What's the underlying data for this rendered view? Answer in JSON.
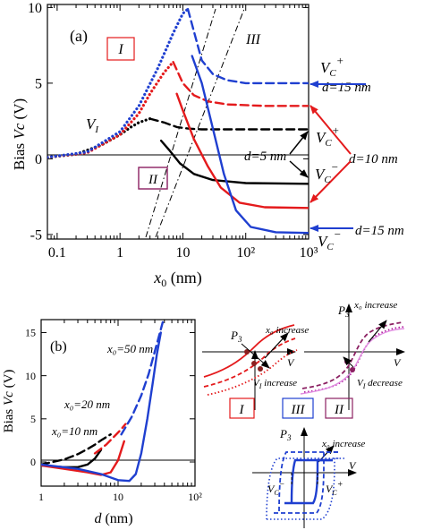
{
  "chart_data": [
    {
      "id": "a",
      "type": "line",
      "panel_label": "(a)",
      "ylabel_prefix": "Bias",
      "ylabel_var": "Vc",
      "ylabel_unit": "(V)",
      "xlabel_var": "x0",
      "xlabel_unit": "(nm)",
      "xscale": "log",
      "xlim": [
        0.07,
        1000
      ],
      "ylim": [
        -5.3,
        10.2
      ],
      "x_ticklabels": [
        "0.1",
        "1",
        "10",
        "10²",
        "10³"
      ],
      "y_ticklabels": [
        "-5",
        "0",
        "5",
        "10"
      ],
      "region_labels": [
        "I",
        "II",
        "III"
      ],
      "annotations": {
        "VI": "V",
        "VI_sub": "I",
        "VC": "V",
        "VC_sub": "C",
        "plus": "+",
        "minus": "−",
        "d15_top": "d=15 nm",
        "d10": "d=10 nm",
        "d5": "d=5 nm",
        "d15_bottom": "d=15 nm"
      },
      "colors": {
        "d5": "#000000",
        "d10": "#e41a1c",
        "d15": "#1f3fd0"
      },
      "series": [
        {
          "name": "d=5 nm",
          "color": "#000000",
          "part": "rising",
          "style": "dotted",
          "x": [
            0.07,
            0.2,
            0.5,
            1,
            1.5,
            2,
            3
          ],
          "y": [
            0.1,
            0.3,
            0.9,
            1.6,
            2.1,
            2.4,
            2.65
          ]
        },
        {
          "name": "d=5 nm",
          "color": "#000000",
          "part": "upper",
          "style": "dashed",
          "x": [
            3,
            5,
            8,
            12,
            20,
            50,
            200,
            1000
          ],
          "y": [
            2.65,
            2.4,
            2.1,
            2.0,
            1.95,
            1.95,
            1.95,
            1.95
          ]
        },
        {
          "name": "d=5 nm",
          "color": "#000000",
          "part": "lower",
          "style": "solid",
          "x": [
            4.5,
            6,
            9,
            15,
            30,
            100,
            1000
          ],
          "y": [
            1.2,
            0.6,
            -0.3,
            -1.0,
            -1.4,
            -1.6,
            -1.65
          ]
        },
        {
          "name": "d=10 nm",
          "color": "#e41a1c",
          "part": "rising",
          "style": "dotted",
          "x": [
            0.07,
            0.3,
            1,
            2,
            3,
            5,
            7
          ],
          "y": [
            0.1,
            0.4,
            1.6,
            3.0,
            4.3,
            5.7,
            6.4
          ]
        },
        {
          "name": "d=10 nm",
          "color": "#e41a1c",
          "part": "upper",
          "style": "dashed",
          "x": [
            7,
            10,
            15,
            25,
            50,
            200,
            1000
          ],
          "y": [
            6.4,
            5.0,
            4.2,
            3.8,
            3.6,
            3.5,
            3.5
          ]
        },
        {
          "name": "d=10 nm",
          "color": "#e41a1c",
          "part": "lower",
          "style": "solid",
          "x": [
            8,
            10,
            15,
            25,
            40,
            80,
            200,
            1000
          ],
          "y": [
            4.3,
            3.2,
            1.3,
            -0.5,
            -1.9,
            -2.9,
            -3.2,
            -3.25
          ]
        },
        {
          "name": "d=15 nm",
          "color": "#1f3fd0",
          "part": "rising",
          "style": "dotted",
          "x": [
            0.07,
            0.3,
            1,
            2,
            4,
            7,
            10,
            12
          ],
          "y": [
            0.1,
            0.45,
            1.8,
            3.5,
            6.0,
            8.3,
            9.6,
            9.9
          ]
        },
        {
          "name": "d=15 nm",
          "color": "#1f3fd0",
          "part": "upper",
          "style": "dashed",
          "x": [
            12,
            20,
            30,
            50,
            100,
            300,
            1000
          ],
          "y": [
            9.9,
            6.5,
            5.6,
            5.2,
            5.0,
            5.0,
            5.0
          ]
        },
        {
          "name": "d=15 nm",
          "color": "#1f3fd0",
          "part": "lower",
          "style": "solid",
          "x": [
            14,
            20,
            30,
            45,
            70,
            120,
            300,
            1000
          ],
          "y": [
            6.8,
            5.0,
            2.0,
            -1.0,
            -3.4,
            -4.5,
            -4.85,
            -4.9
          ]
        }
      ]
    },
    {
      "id": "b",
      "type": "line",
      "panel_label": "(b)",
      "ylabel_prefix": "Bias",
      "ylabel_var": "Vc",
      "ylabel_unit": "(V)",
      "xlabel_var": "d",
      "xlabel_unit": "(nm)",
      "xscale": "log",
      "xlim": [
        1,
        100
      ],
      "ylim": [
        -2.8,
        16.5
      ],
      "x_ticklabels": [
        "1",
        "10",
        "10²"
      ],
      "y_ticklabels": [
        "0",
        "5",
        "10",
        "15"
      ],
      "annotations": {
        "x50": "x₀=50 nm",
        "x20": "x₀=20 nm",
        "x10": "x₀=10 nm"
      },
      "series": [
        {
          "name": "x0=10 nm",
          "color": "#000000",
          "style": "dashed",
          "x": [
            1,
            2,
            3,
            4,
            5,
            6,
            8
          ],
          "y": [
            -0.3,
            0.3,
            0.9,
            1.5,
            2.0,
            2.5,
            3.2
          ]
        },
        {
          "name": "x0=10 nm",
          "color": "#000000",
          "style": "solid",
          "x": [
            1,
            2,
            3,
            4,
            5,
            6
          ],
          "y": [
            -0.4,
            -0.6,
            -0.6,
            -0.3,
            0.4,
            1.4
          ]
        },
        {
          "name": "x0=20 nm",
          "color": "#e41a1c",
          "style": "dashed",
          "x": [
            5,
            7,
            9,
            11,
            12.5
          ],
          "y": [
            1.0,
            2.0,
            3.0,
            3.8,
            4.4
          ]
        },
        {
          "name": "x0=20 nm",
          "color": "#e41a1c",
          "style": "solid",
          "x": [
            1,
            2,
            4,
            6,
            8,
            10,
            12
          ],
          "y": [
            -0.4,
            -0.8,
            -1.2,
            -1.5,
            -1.2,
            0.2,
            2.4
          ]
        },
        {
          "name": "x0=50 nm",
          "color": "#1f3fd0",
          "style": "dashed",
          "x": [
            11,
            15,
            20,
            25,
            30,
            35,
            38
          ],
          "y": [
            3.2,
            5.2,
            7.7,
            10.2,
            12.8,
            15.0,
            16.2
          ]
        },
        {
          "name": "x0=50 nm",
          "color": "#1f3fd0",
          "style": "solid",
          "x": [
            1,
            3,
            6,
            10,
            14,
            17,
            20,
            24,
            28,
            32,
            36
          ],
          "y": [
            -0.3,
            -0.8,
            -1.4,
            -2.1,
            -2.2,
            -1.4,
            1.0,
            5.0,
            9.0,
            12.5,
            15.0
          ]
        }
      ]
    }
  ],
  "insets": {
    "P3": "P",
    "P3_sub": "3",
    "V": "V",
    "x0_increase": "x₀ increase",
    "VI_increase": "V",
    "VI_increase_sub": "I",
    "VI_increase_word": " increase",
    "VI_decrease_word": " decrease",
    "VC_minus": "V",
    "VC_plus": "V",
    "VC_sub": "C",
    "minus": "−",
    "plus": "+",
    "label_I": "I",
    "label_II": "II",
    "label_III": "III"
  }
}
